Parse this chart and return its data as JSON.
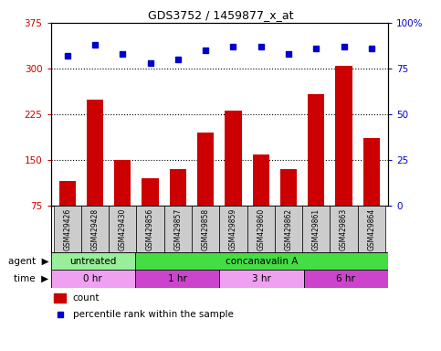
{
  "title": "GDS3752 / 1459877_x_at",
  "samples": [
    "GSM429426",
    "GSM429428",
    "GSM429430",
    "GSM429856",
    "GSM429857",
    "GSM429858",
    "GSM429859",
    "GSM429860",
    "GSM429862",
    "GSM429861",
    "GSM429863",
    "GSM429864"
  ],
  "counts": [
    115,
    248,
    150,
    120,
    135,
    195,
    230,
    158,
    135,
    258,
    305,
    185
  ],
  "percentile_ranks": [
    82,
    88,
    83,
    78,
    80,
    85,
    87,
    87,
    83,
    86,
    87,
    86
  ],
  "ylim_left": [
    75,
    375
  ],
  "yticks_left": [
    75,
    150,
    225,
    300,
    375
  ],
  "ylim_right": [
    0,
    100
  ],
  "yticks_right": [
    0,
    25,
    50,
    75,
    100
  ],
  "bar_color": "#cc0000",
  "dot_color": "#0000cc",
  "agent_groups": [
    {
      "label": "untreated",
      "start": 0,
      "end": 3,
      "color": "#99ee99"
    },
    {
      "label": "concanavalin A",
      "start": 3,
      "end": 12,
      "color": "#44dd44"
    }
  ],
  "time_groups": [
    {
      "label": "0 hr",
      "start": 0,
      "end": 3,
      "color": "#f0a0f0"
    },
    {
      "label": "1 hr",
      "start": 3,
      "end": 6,
      "color": "#cc44cc"
    },
    {
      "label": "3 hr",
      "start": 6,
      "end": 9,
      "color": "#f0a0f0"
    },
    {
      "label": "6 hr",
      "start": 9,
      "end": 12,
      "color": "#cc44cc"
    }
  ],
  "sample_bg_color": "#cccccc",
  "dotted_grid_values": [
    150,
    225,
    300
  ],
  "legend_count_color": "#cc0000",
  "legend_dot_color": "#0000cc"
}
